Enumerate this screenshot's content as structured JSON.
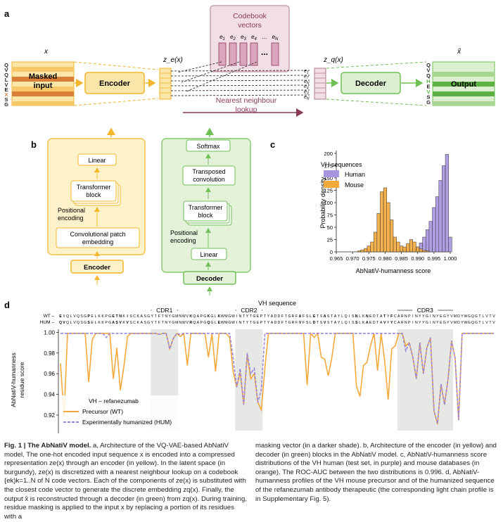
{
  "panel_a": {
    "label": "a",
    "x_label": "x",
    "ze_label": "z_e(x)",
    "zq_label": "z_q(x)",
    "xhat_label": "x̂",
    "input_letters": [
      "Q",
      "V",
      "Q",
      "L",
      "V",
      "E",
      "X",
      "S",
      "G"
    ],
    "output_letters": [
      "Q",
      "V",
      "Q",
      "H",
      "E",
      "V",
      "S",
      "G"
    ],
    "masked_input_line1": "Masked",
    "masked_input_line2": "input",
    "encoder": "Encoder",
    "decoder": "Decoder",
    "output": "Output",
    "codebook_line1": "Codebook",
    "codebook_line2": "vectors",
    "codebook_entries": [
      "e1",
      "e2",
      "e3",
      "e4",
      "…",
      "eN"
    ],
    "zq_entries": [
      "e1",
      "e7",
      "eN",
      "e4",
      "e3",
      "eN"
    ],
    "nn_line1": "Nearest neighbour",
    "nn_line2": "lookup"
  },
  "panel_b": {
    "label": "b",
    "encoder_blocks": [
      "Linear",
      "Transformer block",
      "Positional encoding",
      "Convolutional patch embedding"
    ],
    "encoder_title": "Encoder",
    "decoder_blocks": [
      "Softmax",
      "Transposed convolution",
      "Transformer block",
      "Positional encoding",
      "Linear"
    ],
    "decoder_title": "Decoder"
  },
  "panel_c": {
    "label": "c",
    "legend_title": "VH sequences",
    "xlabel": "AbNatiV-humanness score",
    "ylabel": "Probability density"
  },
  "panel_d": {
    "label": "d",
    "top_title": "VH sequence",
    "wt_label": "WT",
    "hum_label": "HUM",
    "cdr_labels": [
      "CDR1",
      "CDR2",
      "CDR3"
    ],
    "ylabel": "AbNatiV-humanness residue score",
    "legend_title": "VH – refanezumab",
    "wt_sequence": "EIQLVQSGPELKKPGETNKISCKASGYTFTNYGMNWVKQAPGKGLKWMGWINTYTGEPTYADDFTGRFAFSLETSASTAYLQISNLKNEDTATYFCARNPINYYGINYEGYVMDYWGQGTLVTVSS",
    "hum_sequence": "QVQLVQSGSELKKPGASVKVSCKASGYTFTNYGMNWVRQAPGQGLEWMGWINTYTGEPTYADDFTGRFVFSLDTSVSTAYLQISSLKAEDTAVYYCARNPINYYGINYEGYVMDYWGQGTLVTVSS"
  },
  "chart_data": [
    {
      "type": "bar",
      "subtype": "histogram",
      "panel": "c",
      "xlabel": "AbNatiV-humanness score",
      "ylabel": "Probability density",
      "xlim": [
        0.965,
        1.0
      ],
      "ylim": [
        0,
        200
      ],
      "xticks": [
        "0.965",
        "0.970",
        "0.975",
        "0.980",
        "0.985",
        "0.990",
        "0.995",
        "1.000"
      ],
      "yticks": [
        "0",
        "25",
        "50",
        "75",
        "100",
        "125",
        "150",
        "175",
        "200"
      ],
      "legend_placement": "top-left",
      "bin_width": 0.001,
      "series": [
        {
          "name": "Human",
          "color": "#a895e0",
          "bins": [
            [
              0.984,
              1
            ],
            [
              0.985,
              2
            ],
            [
              0.986,
              3
            ],
            [
              0.987,
              3
            ],
            [
              0.988,
              4
            ],
            [
              0.989,
              6
            ],
            [
              0.99,
              10
            ],
            [
              0.991,
              18
            ],
            [
              0.992,
              30
            ],
            [
              0.993,
              45
            ],
            [
              0.994,
              62
            ],
            [
              0.995,
              90
            ],
            [
              0.996,
              112
            ],
            [
              0.997,
              145
            ],
            [
              0.998,
              175
            ],
            [
              0.999,
              198
            ],
            [
              1.0,
              30
            ]
          ]
        },
        {
          "name": "Mouse",
          "color": "#f4a93b",
          "bins": [
            [
              0.972,
              2
            ],
            [
              0.973,
              4
            ],
            [
              0.974,
              7
            ],
            [
              0.975,
              12
            ],
            [
              0.976,
              20
            ],
            [
              0.977,
              40
            ],
            [
              0.978,
              78
            ],
            [
              0.979,
              122
            ],
            [
              0.98,
              130
            ],
            [
              0.981,
              100
            ],
            [
              0.982,
              65
            ],
            [
              0.983,
              30
            ],
            [
              0.984,
              20
            ],
            [
              0.985,
              12
            ],
            [
              0.986,
              10
            ],
            [
              0.987,
              17
            ],
            [
              0.988,
              25
            ],
            [
              0.989,
              20
            ],
            [
              0.99,
              10
            ],
            [
              0.991,
              6
            ],
            [
              0.992,
              3
            ],
            [
              0.993,
              2
            ]
          ]
        }
      ]
    },
    {
      "type": "line",
      "panel": "d",
      "ylabel": "AbNatiV-humanness residue score",
      "ylim": [
        0.905,
        1.003
      ],
      "yticks": [
        "0.92",
        "0.94",
        "0.96",
        "0.98",
        "1.00"
      ],
      "legend_placement": "bottom-left",
      "legend_title": "VH – refanezumab",
      "cdr_ranges": [
        [
          26,
          33
        ],
        [
          50,
          57
        ],
        [
          96,
          111
        ]
      ],
      "x": [
        0,
        1,
        2,
        3,
        4,
        5,
        6,
        7,
        8,
        9,
        10,
        11,
        12,
        13,
        14,
        15,
        16,
        17,
        18,
        19,
        20,
        21,
        22,
        23,
        24,
        25,
        26,
        27,
        28,
        29,
        30,
        31,
        32,
        33,
        34,
        35,
        36,
        37,
        38,
        39,
        40,
        41,
        42,
        43,
        44,
        45,
        46,
        47,
        48,
        49,
        50,
        51,
        52,
        53,
        54,
        55,
        56,
        57,
        58,
        59,
        60,
        61,
        62,
        63,
        64,
        65,
        66,
        67,
        68,
        69,
        70,
        71,
        72,
        73,
        74,
        75,
        76,
        77,
        78,
        79,
        80,
        81,
        82,
        83,
        84,
        85,
        86,
        87,
        88,
        89,
        90,
        91,
        92,
        93,
        94,
        95,
        96,
        97,
        98,
        99,
        100,
        101,
        102,
        103,
        104,
        105,
        106,
        107,
        108,
        109,
        110,
        111,
        112,
        113,
        114,
        115,
        116,
        117,
        118,
        119,
        120,
        121,
        122,
        123
      ],
      "series": [
        {
          "name": "Precursor (WT)",
          "color": "#f4a93b",
          "values": [
            0.97,
            0.918,
            0.999,
            0.999,
            0.999,
            0.999,
            0.999,
            0.999,
            0.952,
            0.993,
            0.999,
            0.999,
            0.999,
            0.999,
            0.999,
            0.955,
            0.985,
            0.944,
            0.967,
            0.996,
            0.999,
            0.999,
            0.999,
            0.999,
            0.999,
            0.999,
            0.999,
            0.999,
            0.998,
            0.999,
            0.999,
            0.984,
            0.994,
            0.999,
            0.996,
            0.999,
            0.968,
            0.999,
            0.999,
            0.999,
            0.999,
            0.999,
            0.976,
            0.999,
            0.962,
            0.999,
            0.999,
            0.999,
            0.995,
            0.962,
            0.947,
            0.961,
            0.93,
            0.978,
            0.955,
            0.96,
            0.932,
            0.925,
            0.965,
            0.999,
            0.999,
            0.999,
            0.999,
            0.999,
            0.999,
            0.999,
            0.999,
            0.999,
            0.999,
            0.999,
            0.949,
            0.999,
            0.995,
            0.999,
            0.976,
            0.974,
            0.958,
            0.975,
            0.999,
            0.999,
            0.999,
            0.999,
            0.999,
            0.999,
            0.948,
            0.938,
            0.968,
            0.971,
            0.987,
            0.999,
            0.963,
            0.999,
            0.973,
            0.935,
            0.984,
            0.987,
            0.999,
            0.999,
            0.987,
            0.99,
            0.976,
            0.955,
            0.99,
            0.96,
            0.985,
            0.995,
            0.924,
            0.911,
            0.95,
            0.93,
            0.955,
            0.992,
            0.975,
            0.915,
            0.999,
            0.999,
            0.999,
            0.999,
            0.999,
            0.999,
            0.999,
            0.999,
            0.999,
            0.999
          ]
        },
        {
          "name": "Experimentally humanized (HUM)",
          "color": "#9b86dc",
          "values": [
            0.999,
            0.999,
            0.999,
            0.999,
            0.999,
            0.999,
            0.999,
            0.999,
            0.999,
            0.999,
            0.999,
            0.999,
            0.999,
            0.995,
            0.999,
            0.999,
            0.999,
            0.999,
            0.999,
            0.999,
            0.999,
            0.999,
            0.999,
            0.999,
            0.999,
            0.999,
            0.999,
            0.999,
            0.998,
            0.999,
            0.999,
            0.984,
            0.994,
            0.999,
            0.998,
            0.999,
            0.999,
            0.999,
            0.999,
            0.999,
            0.999,
            0.999,
            0.999,
            0.999,
            0.999,
            0.999,
            0.999,
            0.999,
            0.999,
            0.975,
            0.947,
            0.965,
            0.93,
            0.98,
            0.96,
            0.965,
            0.932,
            0.945,
            0.999,
            0.999,
            0.999,
            0.999,
            0.999,
            0.999,
            0.999,
            0.999,
            0.999,
            0.999,
            0.999,
            0.999,
            0.999,
            0.999,
            0.999,
            0.999,
            0.999,
            0.999,
            0.999,
            0.999,
            0.999,
            0.999,
            0.999,
            0.999,
            0.999,
            0.999,
            0.999,
            0.999,
            0.999,
            0.999,
            0.999,
            0.999,
            0.999,
            0.999,
            0.999,
            0.999,
            0.999,
            0.999,
            0.999,
            0.999,
            0.982,
            0.99,
            0.976,
            0.955,
            0.99,
            0.96,
            0.985,
            0.995,
            0.924,
            0.912,
            0.95,
            0.93,
            0.955,
            0.992,
            0.975,
            0.915,
            0.999,
            0.999,
            0.999,
            0.999,
            0.999,
            0.999,
            0.999,
            0.999,
            0.999,
            0.999
          ]
        }
      ]
    }
  ],
  "caption": {
    "fig_label": "Fig. 1 | The AbNatiV model.",
    "col1": "a, Architecture of the VQ-VAE-based AbNatiV model. The one-hot encoded input sequence x is encoded into a compressed representation ze(x) through an encoder (in yellow). In the latent space (in burgundy), ze(x) is discretized with a nearest neighbour lookup on a codebook {ek}k=1..N of N code vectors. Each of the components of ze(x) is substituted with the closest code vector to generate the discrete embedding zq(x). Finally, the output x̂ is reconstructed through a decoder (in green) from zq(x). During training, residue masking is applied to the input x by replacing a portion of its residues with a",
    "col2": "masking vector (in a darker shade). b, Architecture of the encoder (in yellow) and decoder (in green) blocks in the AbNatiV model. c, AbNatiV-humanness score distributions of the VH human (test set, in purple) and mouse databases (in orange). The ROC-AUC between the two distributions is 0.996. d, AbNatiV-humanness profiles of the VH mouse precursor and of the humanized sequence of the refanezumab antibody therapeutic (the corresponding light chain profile is in Supplementary Fig. 5)."
  }
}
